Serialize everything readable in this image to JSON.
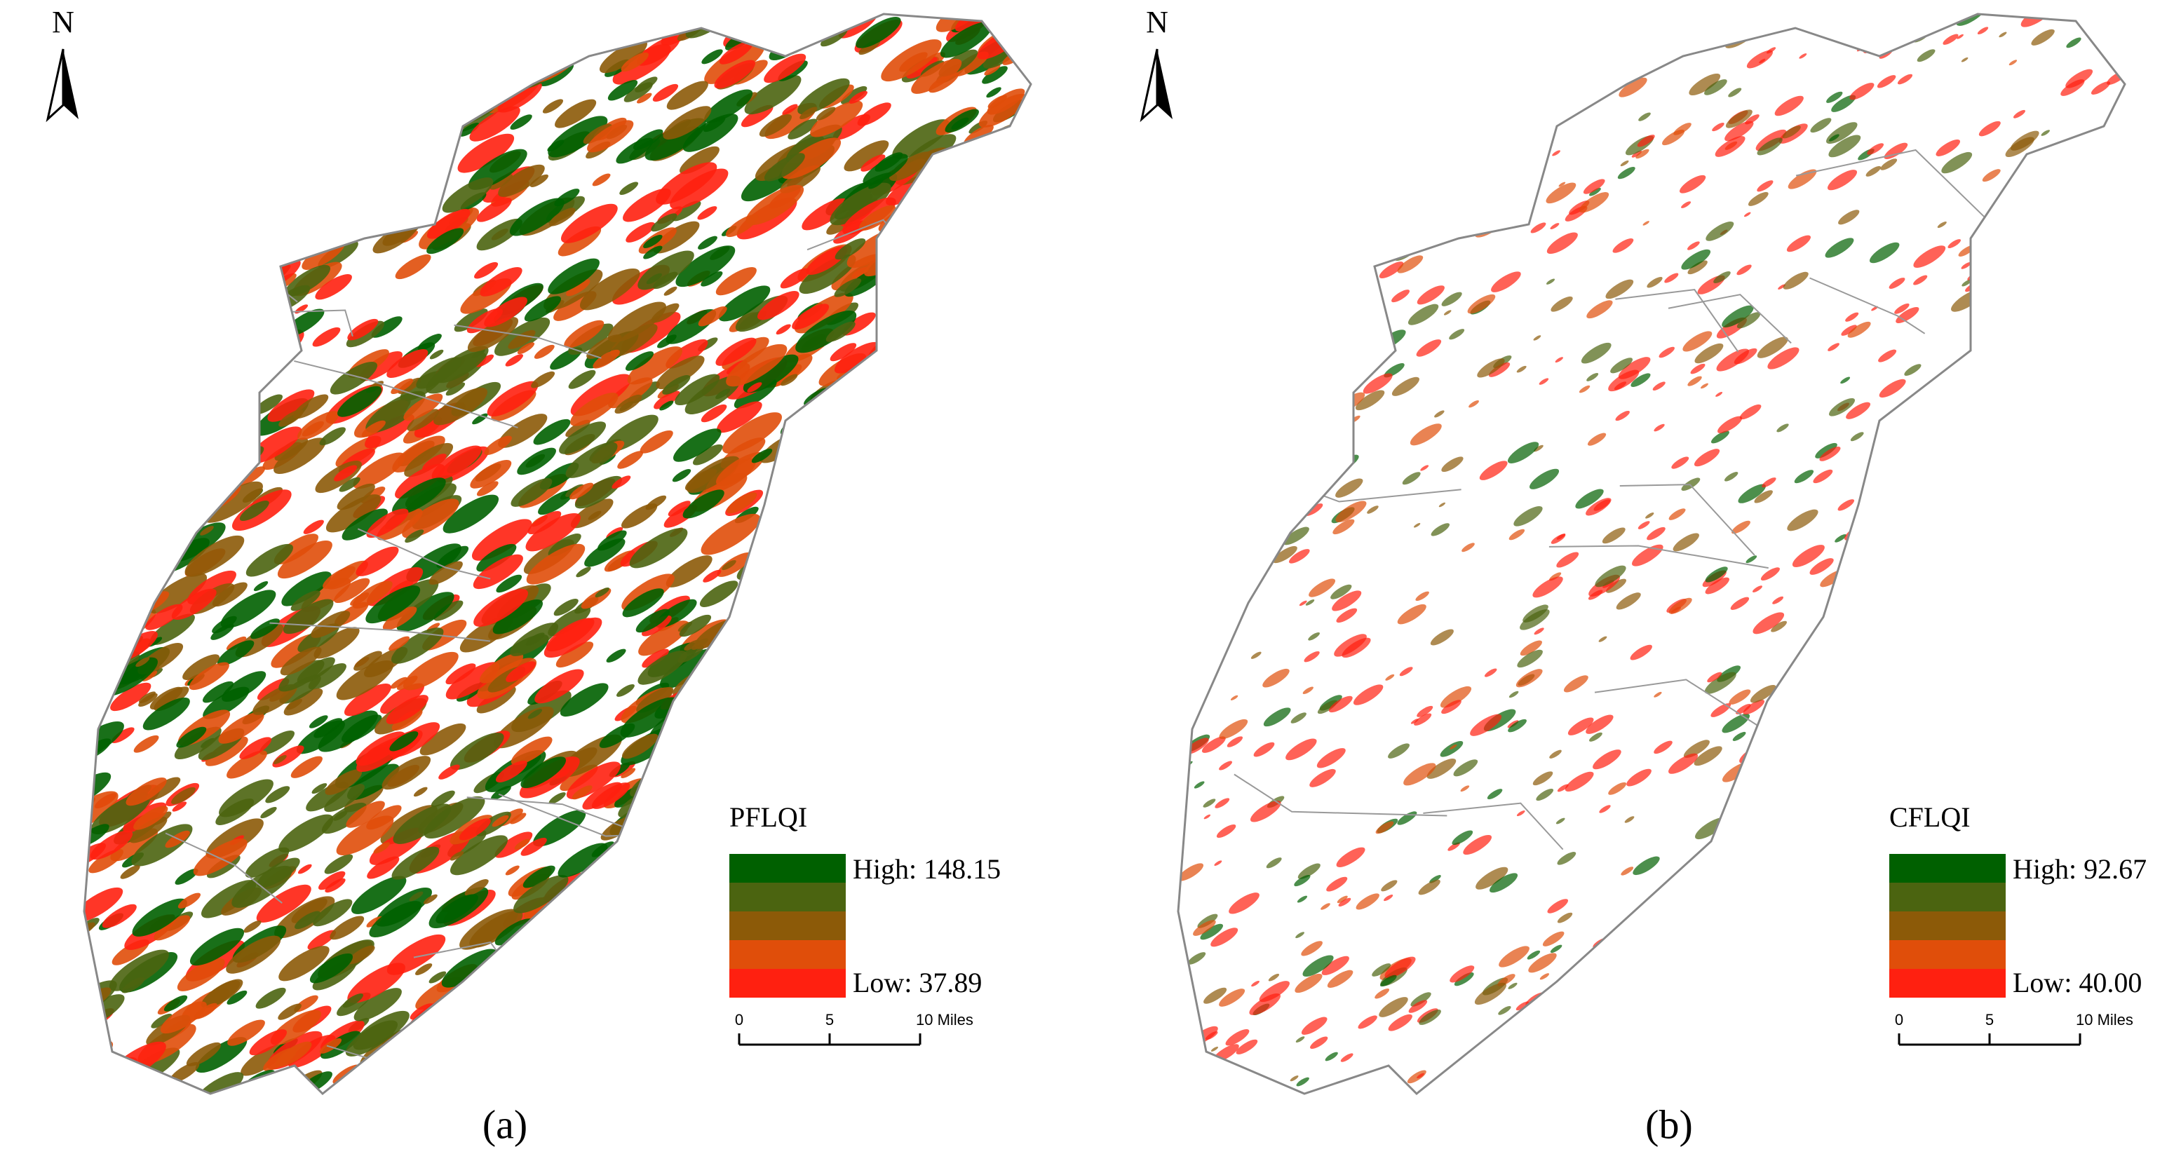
{
  "panels": [
    {
      "label": "(a)",
      "north": "N",
      "legend": {
        "title": "PFLQI",
        "high": "High: 148.15",
        "low": "Low: 37.89",
        "colors": [
          "#006000",
          "#4b6410",
          "#8c5a08",
          "#e04e0a",
          "#ff2010"
        ]
      },
      "scale_bar": {
        "ticks": [
          "0",
          "5",
          "10 Miles"
        ]
      }
    },
    {
      "label": "(b)",
      "north": "N",
      "legend": {
        "title": "CFLQI",
        "high": "High: 92.67",
        "low": "Low: 40.00",
        "colors": [
          "#006000",
          "#4b6410",
          "#8c5a08",
          "#e04e0a",
          "#ff2010"
        ]
      },
      "scale_bar": {
        "ticks": [
          "0",
          "5",
          "10 Miles"
        ]
      }
    }
  ]
}
